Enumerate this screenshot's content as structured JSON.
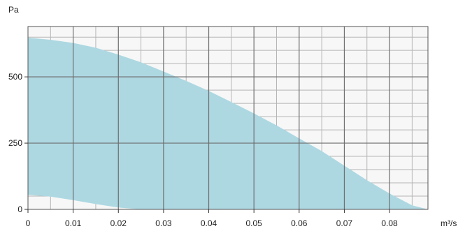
{
  "chart_data": {
    "type": "area",
    "title": "",
    "xlabel": "m³/s",
    "ylabel": "Pa",
    "xlim": [
      0,
      0.0885
    ],
    "ylim": [
      0,
      690
    ],
    "x_ticks": [
      0,
      0.01,
      0.02,
      0.03,
      0.04,
      0.05,
      0.06,
      0.07,
      0.08
    ],
    "x_tick_labels": [
      "0",
      "0.01",
      "0.02",
      "0.03",
      "0.04",
      "0.05",
      "0.06",
      "0.07",
      "0.08"
    ],
    "y_ticks": [
      0,
      250,
      500
    ],
    "y_tick_labels": [
      "0",
      "250",
      "500"
    ],
    "x_minor_step": 0.005,
    "y_minor_step": 50,
    "grid": true,
    "fill_color": "#add8e2",
    "series": [
      {
        "role": "upper",
        "x": [
          0,
          0.005,
          0.01,
          0.015,
          0.02,
          0.025,
          0.03,
          0.035,
          0.04,
          0.045,
          0.05,
          0.055,
          0.06,
          0.065,
          0.07,
          0.075,
          0.08,
          0.085,
          0.0885
        ],
        "y": [
          648,
          640,
          628,
          610,
          584,
          555,
          520,
          485,
          447,
          405,
          362,
          317,
          268,
          220,
          165,
          110,
          60,
          15,
          0
        ]
      },
      {
        "role": "lower",
        "x": [
          0,
          0.005,
          0.01,
          0.015,
          0.02,
          0.025
        ],
        "y": [
          55,
          48,
          35,
          20,
          7,
          0
        ]
      }
    ]
  }
}
